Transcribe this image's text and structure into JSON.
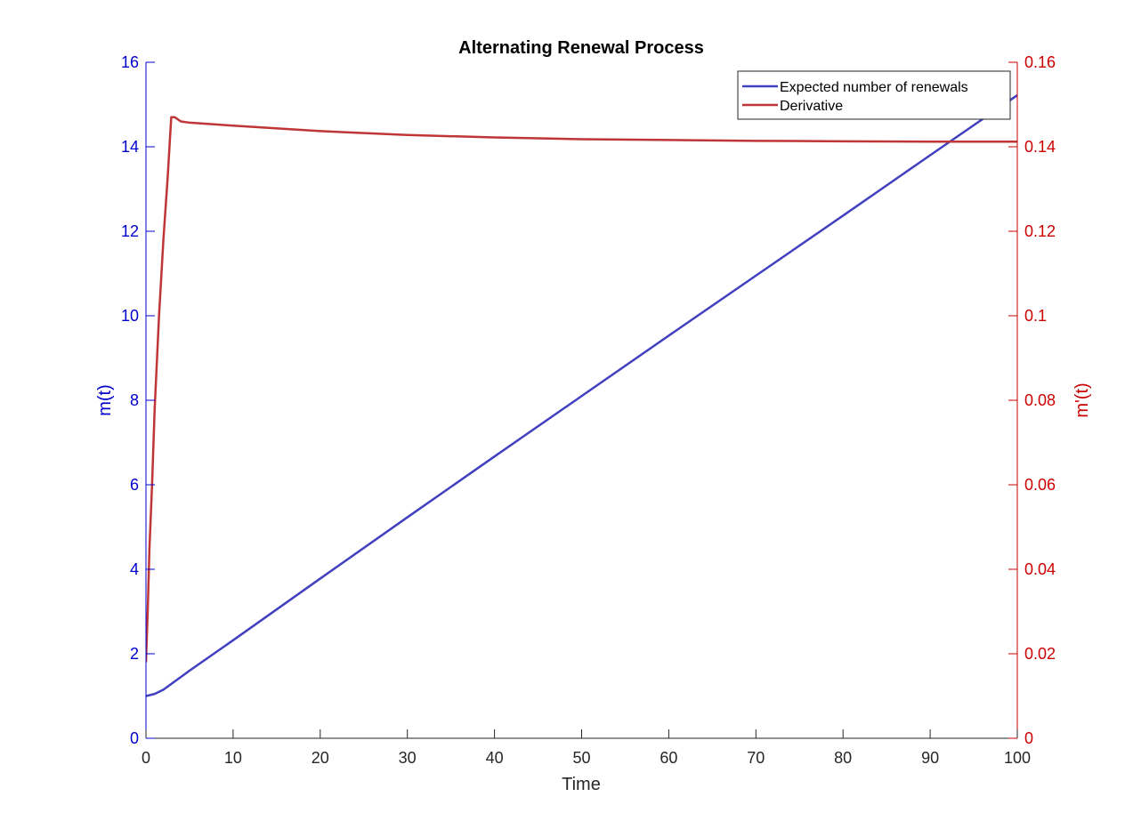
{
  "chart_data": {
    "type": "line",
    "title": "Alternating Renewal Process",
    "xlabel": "Time",
    "ylabel_left": "m(t)",
    "ylabel_right": "m'(t)",
    "xlim": [
      0,
      100
    ],
    "ylim_left": [
      0,
      16
    ],
    "ylim_right": [
      0,
      0.16
    ],
    "xticks": [
      "0",
      "10",
      "20",
      "30",
      "40",
      "50",
      "60",
      "70",
      "80",
      "90",
      "100"
    ],
    "yticks_left": [
      "0",
      "2",
      "4",
      "6",
      "8",
      "10",
      "12",
      "14",
      "16"
    ],
    "yticks_right": [
      "0",
      "0.02",
      "0.04",
      "0.06",
      "0.08",
      "0.1",
      "0.12",
      "0.14",
      "0.16"
    ],
    "grid": false,
    "legend_position": "top-right",
    "colors": {
      "left_axis": "#0000cc",
      "right_axis": "#cc0000",
      "series_blue": "#4040c0",
      "series_red": "#c03535",
      "axis_bottom": "#262626"
    },
    "series": [
      {
        "name": "Expected number of renewals",
        "axis": "left",
        "x": [
          0,
          1,
          2,
          3,
          5,
          10,
          20,
          30,
          40,
          50,
          60,
          70,
          80,
          90,
          100
        ],
        "y": [
          1.0,
          1.05,
          1.15,
          1.3,
          1.6,
          2.32,
          3.78,
          5.23,
          6.67,
          8.1,
          9.53,
          10.95,
          12.37,
          13.8,
          15.22
        ]
      },
      {
        "name": "Derivative",
        "axis": "right",
        "x": [
          0,
          0.2,
          0.4,
          0.7,
          1.0,
          1.5,
          2.0,
          2.5,
          2.9,
          3.3,
          4,
          5,
          10,
          20,
          30,
          40,
          50,
          60,
          70,
          80,
          90,
          100
        ],
        "y": [
          0.018,
          0.03,
          0.045,
          0.06,
          0.078,
          0.1,
          0.118,
          0.133,
          0.147,
          0.147,
          0.146,
          0.1457,
          0.145,
          0.1437,
          0.1428,
          0.1422,
          0.1418,
          0.1416,
          0.1414,
          0.1413,
          0.1412,
          0.1412
        ]
      }
    ]
  }
}
